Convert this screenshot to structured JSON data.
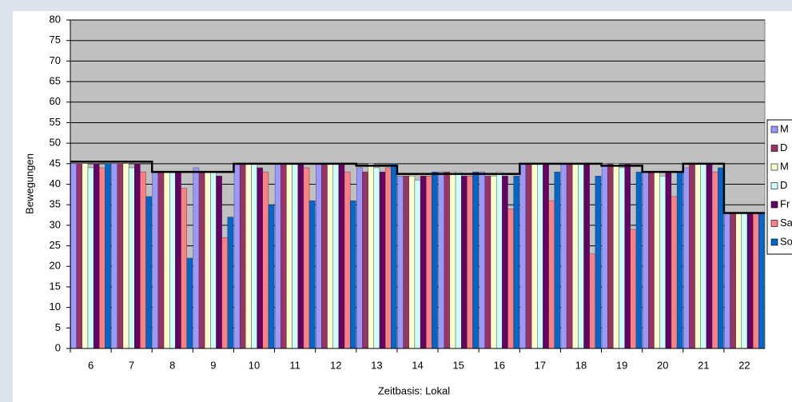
{
  "chart_data": {
    "type": "bar",
    "x_label": "Zeitbasis: Lokal",
    "y_label": "Bewegungen",
    "categories": [
      "6",
      "7",
      "8",
      "9",
      "10",
      "11",
      "12",
      "13",
      "14",
      "15",
      "16",
      "17",
      "18",
      "19",
      "20",
      "21",
      "22"
    ],
    "series": [
      {
        "name": "M",
        "color": "#9999ff",
        "values": [
          45,
          45,
          43,
          44,
          45,
          45,
          45,
          44,
          42,
          43,
          43,
          45,
          45,
          45,
          43,
          44,
          33
        ]
      },
      {
        "name": "D",
        "color": "#993366",
        "values": [
          45,
          45,
          43,
          43,
          45,
          45,
          45,
          43,
          42,
          43,
          42,
          45,
          45,
          45,
          43,
          45,
          33
        ]
      },
      {
        "name": "M",
        "color": "#ffffcc",
        "values": [
          45,
          45,
          43,
          43,
          45,
          45,
          45,
          45,
          42,
          43,
          42,
          45,
          45,
          45,
          43,
          45,
          33
        ]
      },
      {
        "name": "D",
        "color": "#ccffff",
        "values": [
          44,
          44,
          43,
          43,
          45,
          45,
          45,
          44,
          41,
          43,
          43,
          45,
          45,
          44,
          42,
          45,
          33
        ]
      },
      {
        "name": "Fr",
        "color": "#660066",
        "values": [
          45,
          45,
          43,
          42,
          44,
          45,
          45,
          43,
          42,
          42,
          42,
          45,
          45,
          45,
          43,
          45,
          33
        ]
      },
      {
        "name": "Sa",
        "color": "#ff8080",
        "values": [
          44,
          43,
          39,
          27,
          43,
          44,
          43,
          44,
          42,
          42,
          34,
          36,
          23,
          29,
          37,
          43,
          33
        ]
      },
      {
        "name": "So",
        "color": "#0066cc",
        "values": [
          45,
          37,
          22,
          32,
          35,
          36,
          36,
          45,
          43,
          43,
          42,
          43,
          42,
          43,
          43,
          44,
          33
        ]
      }
    ],
    "step_line": {
      "color": "#000000",
      "values": [
        45.5,
        45.5,
        43,
        43,
        45,
        45,
        45,
        44.5,
        42.5,
        42.5,
        42.5,
        45,
        45,
        44.5,
        43,
        45,
        33
      ]
    },
    "ylim": [
      0,
      80
    ],
    "yticks": [
      0,
      5,
      10,
      15,
      20,
      25,
      30,
      35,
      40,
      45,
      50,
      55,
      60,
      65,
      70,
      75,
      80
    ],
    "grid": true,
    "plot_background": "#c0c0c0"
  }
}
